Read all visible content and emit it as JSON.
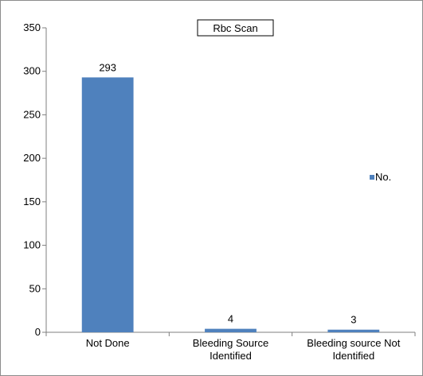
{
  "chart_data": {
    "type": "bar",
    "title": "Rbc Scan",
    "categories": [
      [
        "Not Done"
      ],
      [
        "Bleeding Source",
        "Identified"
      ],
      [
        "Bleeding source Not",
        "Identified"
      ]
    ],
    "series": [
      {
        "name": "No.",
        "values": [
          293,
          4,
          3
        ],
        "color": "#4f81bd"
      }
    ],
    "data_labels": [
      "293",
      "4",
      "3"
    ],
    "y_ticks": [
      "0",
      "50",
      "100",
      "150",
      "200",
      "250",
      "300",
      "350"
    ],
    "ylim": [
      0,
      350
    ],
    "xlabel": "",
    "ylabel": "",
    "grid": false,
    "legend_position": "right"
  }
}
